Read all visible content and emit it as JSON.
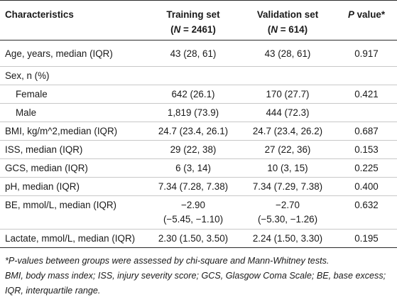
{
  "table": {
    "headers": {
      "characteristics": "Characteristics",
      "training": {
        "line1": "Training set",
        "n_label": "N",
        "n_value": " = 2461)"
      },
      "validation": {
        "line1": "Validation set",
        "n_label": "N",
        "n_value": " = 614)"
      },
      "p_value": {
        "p": "P",
        "rest": " value*"
      }
    },
    "rows": [
      {
        "label": "Age, years, median (IQR)",
        "training": "43 (28, 61)",
        "validation": "43 (28, 61)",
        "p": "0.917"
      },
      {
        "label": "Sex, n (%)",
        "training": "",
        "validation": "",
        "p": ""
      },
      {
        "label": "Female",
        "training": "642 (26.1)",
        "validation": "170 (27.7)",
        "p": "0.421"
      },
      {
        "label": "Male",
        "training": "1,819 (73.9)",
        "validation": "444 (72.3)",
        "p": ""
      },
      {
        "label": "BMI, kg/m^2,median (IQR)",
        "training": "24.7 (23.4, 26.1)",
        "validation": "24.7 (23.4, 26.2)",
        "p": "0.687"
      },
      {
        "label": "ISS, median (IQR)",
        "training": "29 (22, 38)",
        "validation": "27 (22, 36)",
        "p": "0.153"
      },
      {
        "label": "GCS, median (IQR)",
        "training": "6 (3, 14)",
        "validation": "10 (3, 15)",
        "p": "0.225"
      },
      {
        "label": "pH, median (IQR)",
        "training": "7.34 (7.28, 7.38)",
        "validation": "7.34 (7.29, 7.38)",
        "p": "0.400"
      },
      {
        "label": "BE, mmol/L, median (IQR)",
        "training": "−2.90",
        "training2": "(−5.45, −1.10)",
        "validation": "−2.70",
        "validation2": "(−5.30, −1.26)",
        "p": "0.632"
      },
      {
        "label": "Lactate, mmol/L, median (IQR)",
        "training": "2.30 (1.50, 3.50)",
        "validation": "2.24 (1.50, 3.30)",
        "p": "0.195"
      }
    ]
  },
  "footnotes": {
    "line1": "*P-values between groups were assessed by chi-square and Mann-Whitney tests.",
    "line2": "BMI, body mass index; ISS, injury severity score; GCS, Glasgow Coma Scale; BE, base excess; IQR, interquartile range."
  }
}
